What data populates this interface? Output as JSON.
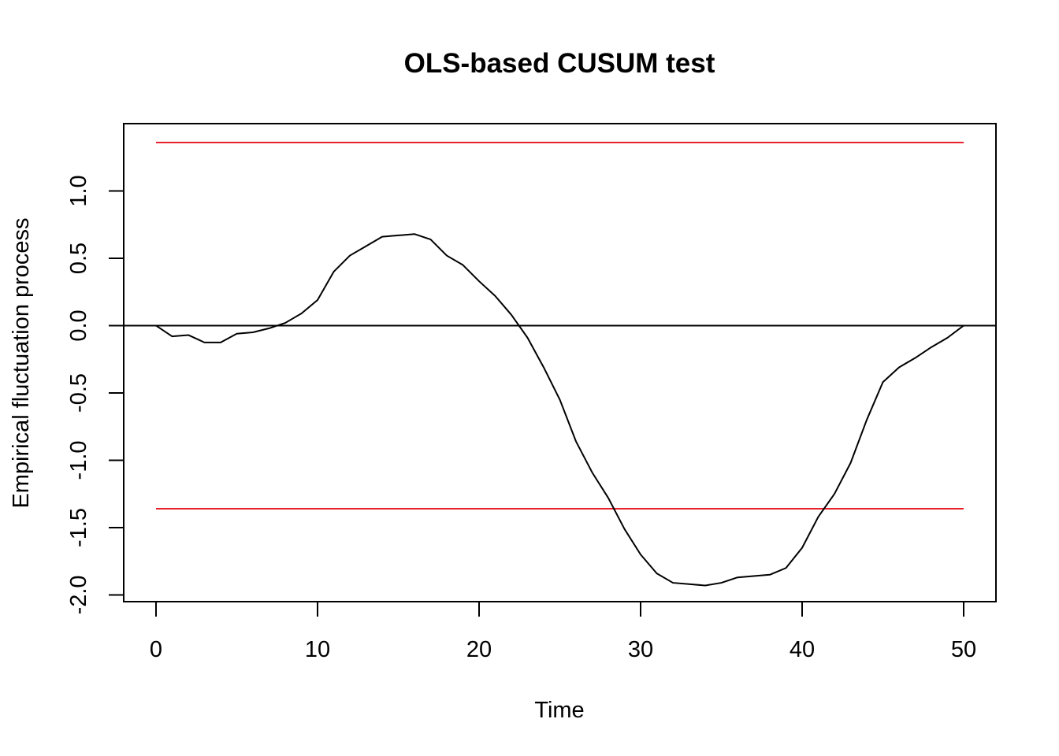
{
  "chart_data": {
    "type": "line",
    "title": "OLS-based CUSUM test",
    "xlabel": "Time",
    "ylabel": "Empirical fluctuation process",
    "xlim": [
      -2,
      52
    ],
    "ylim": [
      -2.05,
      1.5
    ],
    "x_ticks": [
      0,
      10,
      20,
      30,
      40,
      50
    ],
    "x_tick_labels": [
      "0",
      "10",
      "20",
      "30",
      "40",
      "50"
    ],
    "y_ticks": [
      -2.0,
      -1.5,
      -1.0,
      -0.5,
      0.0,
      0.5,
      1.0
    ],
    "y_tick_labels": [
      "-2.0",
      "-1.5",
      "-1.0",
      "-0.5",
      "0.0",
      "0.5",
      "1.0"
    ],
    "grid": false,
    "reference_lines": [
      {
        "y": 1.36,
        "color": "#e8202a"
      },
      {
        "y": -1.36,
        "color": "#e8202a"
      },
      {
        "y": 0.0,
        "color": "#000000"
      }
    ],
    "series": [
      {
        "color": "#000000",
        "x": [
          0,
          1,
          2,
          3,
          4,
          5,
          6,
          7,
          8,
          9,
          10,
          11,
          12,
          13,
          14,
          15,
          16,
          17,
          18,
          19,
          20,
          21,
          22,
          23,
          24,
          25,
          26,
          27,
          28,
          29,
          30,
          31,
          32,
          33,
          34,
          35,
          36,
          37,
          38,
          39,
          40,
          41,
          42,
          43,
          44,
          45,
          46,
          47,
          48,
          49,
          50
        ],
        "values": [
          0.0,
          -0.08,
          -0.07,
          -0.125,
          -0.125,
          -0.06,
          -0.05,
          -0.02,
          0.02,
          0.09,
          0.19,
          0.4,
          0.52,
          0.59,
          0.66,
          0.67,
          0.68,
          0.64,
          0.52,
          0.45,
          0.33,
          0.22,
          0.08,
          -0.09,
          -0.31,
          -0.55,
          -0.86,
          -1.09,
          -1.28,
          -1.51,
          -1.7,
          -1.84,
          -1.91,
          -1.92,
          -1.93,
          -1.91,
          -1.87,
          -1.86,
          -1.85,
          -1.8,
          -1.65,
          -1.42,
          -1.25,
          -1.02,
          -0.7,
          -0.42,
          -0.31,
          -0.24,
          -0.16,
          -0.09,
          0.0
        ]
      }
    ]
  }
}
